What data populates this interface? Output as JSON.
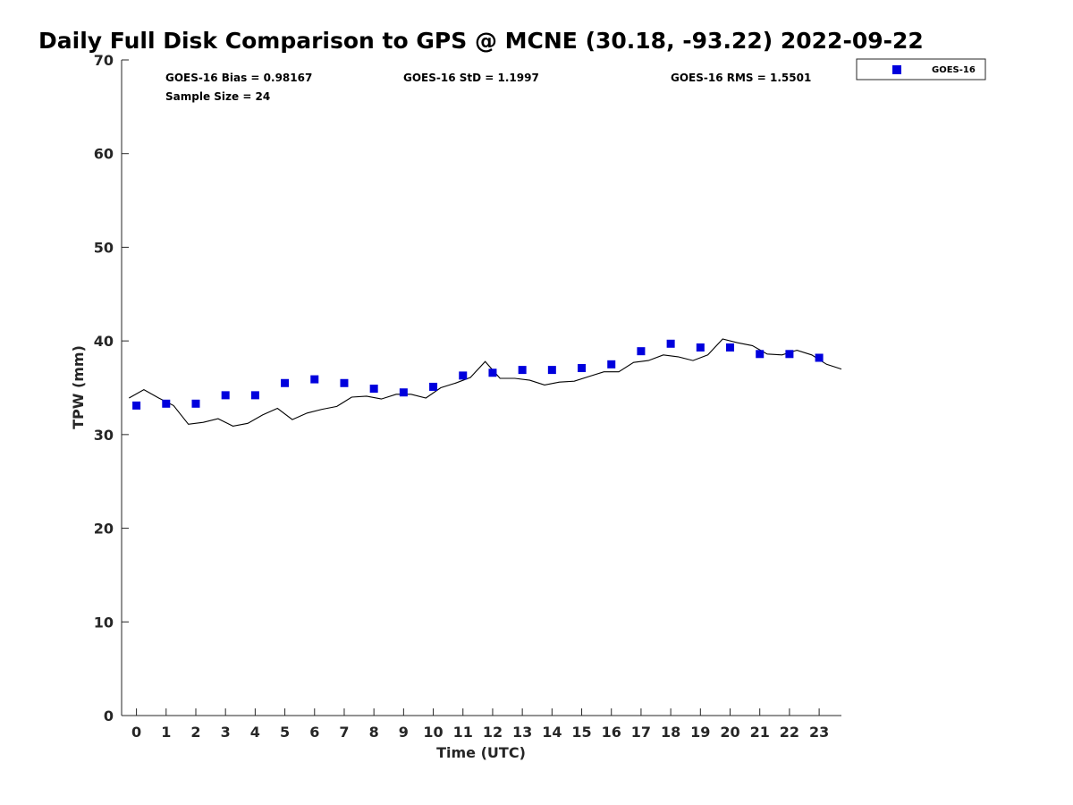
{
  "chart_data": {
    "type": "scatter",
    "title": "Daily Full Disk Comparison to GPS @ MCNE (30.18, -93.22) 2022-09-22",
    "xlabel": "Time (UTC)",
    "ylabel": "TPW (mm)",
    "xlim": [
      -0.5,
      23.75
    ],
    "ylim": [
      0,
      70
    ],
    "x_ticks": [
      "0",
      "1",
      "2",
      "3",
      "4",
      "5",
      "6",
      "7",
      "8",
      "9",
      "10",
      "11",
      "12",
      "13",
      "14",
      "15",
      "16",
      "17",
      "18",
      "19",
      "20",
      "21",
      "22",
      "23"
    ],
    "y_ticks": [
      "0",
      "10",
      "20",
      "30",
      "40",
      "50",
      "60",
      "70"
    ],
    "grid": false,
    "legend_position": "top-right, outside plot",
    "stats": {
      "bias": "GOES-16 Bias = 0.98167",
      "std": "GOES-16 StD = 1.1997",
      "rms": "GOES-16 RMS = 1.5501",
      "sample_size": "Sample Size = 24"
    },
    "series": [
      {
        "name": "GOES-16",
        "type": "scatter",
        "marker": "square",
        "color": "#0000dd",
        "x": [
          0,
          1,
          2,
          3,
          4,
          5,
          6,
          7,
          8,
          9,
          10,
          11,
          12,
          13,
          14,
          15,
          16,
          17,
          18,
          19,
          20,
          21,
          22,
          23
        ],
        "y": [
          33.1,
          33.3,
          33.3,
          34.2,
          34.2,
          35.5,
          35.9,
          35.5,
          34.9,
          34.5,
          35.1,
          36.3,
          36.6,
          36.9,
          36.9,
          37.1,
          37.5,
          38.9,
          39.7,
          39.3,
          39.3,
          38.6,
          38.6,
          38.2
        ]
      },
      {
        "type": "line",
        "color": "#000000",
        "x": [
          -0.25,
          0.25,
          0.75,
          1.25,
          1.75,
          2.25,
          2.75,
          3.25,
          3.75,
          4.25,
          4.75,
          5.25,
          5.75,
          6.25,
          6.75,
          7.25,
          7.75,
          8.25,
          8.75,
          9.25,
          9.75,
          10.25,
          10.75,
          11.25,
          11.75,
          12.25,
          12.75,
          13.25,
          13.75,
          14.25,
          14.75,
          15.25,
          15.75,
          16.25,
          16.75,
          17.25,
          17.75,
          18.25,
          18.75,
          19.25,
          19.75,
          20.25,
          20.75,
          21.25,
          21.75,
          22.25,
          22.75,
          23.25,
          23.75
        ],
        "y": [
          33.9,
          34.8,
          33.9,
          33.1,
          31.1,
          31.3,
          31.7,
          30.9,
          31.2,
          32.1,
          32.8,
          31.6,
          32.3,
          32.7,
          33.0,
          34.0,
          34.1,
          33.8,
          34.3,
          34.3,
          33.9,
          35.0,
          35.5,
          36.1,
          37.8,
          36.0,
          36.0,
          35.8,
          35.3,
          35.6,
          35.7,
          36.2,
          36.7,
          36.7,
          37.7,
          37.9,
          38.5,
          38.3,
          37.9,
          38.5,
          40.2,
          39.8,
          39.5,
          38.6,
          38.5,
          39.0,
          38.5,
          37.5,
          37.0
        ]
      }
    ]
  }
}
